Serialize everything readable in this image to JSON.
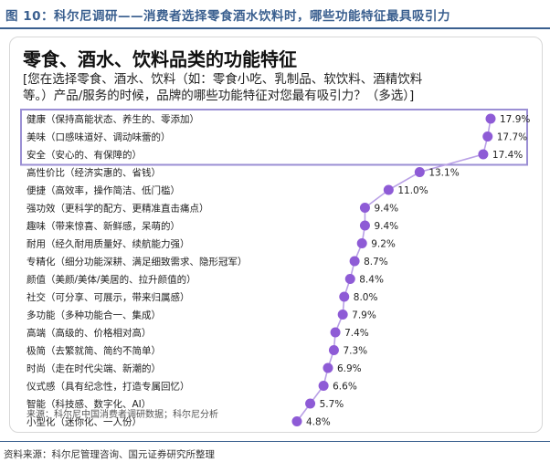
{
  "figure_title": "图 10：科尔尼调研——消费者选择零食酒水饮料时，哪些功能特征最具吸引力",
  "chart_title": "零食、酒水、饮料品类的功能特征",
  "chart_subtitle_line1": "[您在选择零食、酒水、饮料（如：零食小吃、乳制品、软饮料、酒精饮料",
  "chart_subtitle_line2": "等。）产品/服务的时候，品牌的哪些功能特征对您最有吸引力？（多选）]",
  "chart_source": "来源：科尔尼中国消费者调研数据；科尔尼分析",
  "page_source": "资料来源：科尔尼管理咨询、国元证券研究所整理",
  "colors": {
    "accent": "#8e5bd6",
    "line": "#b9a0e6",
    "highlight_box": "#9b8fd4",
    "figure_title": "#3a5f8f"
  },
  "chart_data": {
    "type": "scatter",
    "title": "零食、酒水、饮料品类的功能特征",
    "categories": [
      "健康（保持高能状态、养生的、零添加）",
      "美味（口感味道好、调动味蕾的）",
      "安全（安心的、有保障的）",
      "高性价比（经济实惠的、省钱）",
      "便捷（高效率，操作简洁、低门槛）",
      "强功效（更科学的配方、更精准直击痛点）",
      "趣味（带来惊喜、新鲜感，呆萌的）",
      "耐用（经久耐用质量好、续航能力强）",
      "专精化（细分功能深耕、满足细致需求、隐形冠军）",
      "颜值（美颜/美体/美居的、拉升颜值的）",
      "社交（可分享、可展示，带来归属感）",
      "多功能（多种功能合一、集成）",
      "高端（高级的、价格相对高）",
      "极简（去繁就简、简约不简单）",
      "时尚（走在时代尖端、新潮的）",
      "仪式感（具有纪念性，打造专属回忆）",
      "智能（科技感、数字化、AI）",
      "小型化（迷你化、一人份）"
    ],
    "values": [
      17.9,
      17.7,
      17.4,
      13.1,
      11.0,
      9.4,
      9.4,
      9.2,
      8.7,
      8.4,
      8.0,
      7.9,
      7.4,
      7.3,
      6.9,
      6.6,
      5.7,
      4.8
    ],
    "value_labels": [
      "17.9%",
      "17.7%",
      "17.4%",
      "13.1%",
      "11.0%",
      "9.4%",
      "9.4%",
      "9.2%",
      "8.7%",
      "8.4%",
      "8.0%",
      "7.9%",
      "7.4%",
      "7.3%",
      "6.9%",
      "6.6%",
      "5.7%",
      "4.8%"
    ],
    "highlighted_top_n": 3,
    "xlim": [
      4.8,
      17.9
    ],
    "grid": false,
    "legend": "none"
  }
}
